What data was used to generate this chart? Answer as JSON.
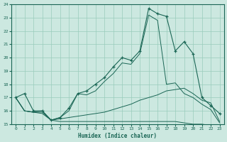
{
  "xlabel": "Humidex (Indice chaleur)",
  "bg_color": "#cce8e0",
  "grid_color": "#99ccbb",
  "line_color": "#1a6655",
  "xlim": [
    -0.5,
    23.5
  ],
  "ylim": [
    15,
    24
  ],
  "yticks": [
    15,
    16,
    17,
    18,
    19,
    20,
    21,
    22,
    23,
    24
  ],
  "xticks": [
    0,
    1,
    2,
    3,
    4,
    5,
    6,
    7,
    8,
    9,
    10,
    11,
    12,
    13,
    14,
    15,
    16,
    17,
    18,
    19,
    20,
    21,
    22,
    23
  ],
  "line1_x": [
    0,
    1,
    2,
    3,
    4,
    5,
    6,
    7,
    8,
    9,
    10,
    11,
    12,
    13,
    14,
    15,
    16,
    17,
    18,
    19,
    20,
    21,
    22,
    23
  ],
  "line1_y": [
    17.0,
    17.3,
    16.0,
    16.0,
    15.3,
    15.5,
    16.2,
    17.3,
    17.5,
    18.0,
    18.5,
    19.3,
    20.0,
    19.8,
    20.5,
    23.7,
    23.3,
    23.1,
    20.5,
    21.2,
    20.3,
    17.0,
    16.4,
    15.8
  ],
  "line2_x": [
    0,
    1,
    2,
    3,
    4,
    5,
    6,
    7,
    8,
    9,
    10,
    11,
    12,
    13,
    14,
    15,
    16,
    17,
    18,
    19,
    20,
    21,
    22,
    23
  ],
  "line2_y": [
    17.0,
    16.0,
    15.9,
    16.0,
    15.3,
    15.5,
    16.0,
    17.3,
    17.2,
    17.5,
    18.2,
    18.8,
    19.6,
    19.5,
    20.3,
    23.2,
    22.8,
    18.0,
    18.1,
    17.3,
    17.0,
    16.5,
    16.1,
    15.1
  ],
  "line3_x": [
    0,
    1,
    2,
    3,
    4,
    5,
    6,
    7,
    8,
    9,
    10,
    11,
    12,
    13,
    14,
    15,
    16,
    17,
    18,
    19,
    20,
    21,
    22,
    23
  ],
  "line3_y": [
    17.0,
    16.0,
    15.9,
    15.9,
    15.3,
    15.4,
    15.5,
    15.6,
    15.7,
    15.8,
    15.9,
    16.1,
    16.3,
    16.5,
    16.8,
    17.0,
    17.2,
    17.5,
    17.6,
    17.7,
    17.3,
    16.8,
    16.6,
    15.2
  ],
  "line4_x": [
    0,
    1,
    2,
    3,
    4,
    5,
    6,
    7,
    8,
    9,
    10,
    11,
    12,
    13,
    14,
    15,
    16,
    17,
    18,
    19,
    20,
    21,
    22,
    23
  ],
  "line4_y": [
    17.0,
    16.0,
    15.9,
    15.8,
    15.3,
    15.2,
    15.2,
    15.2,
    15.2,
    15.2,
    15.2,
    15.2,
    15.2,
    15.2,
    15.2,
    15.2,
    15.2,
    15.2,
    15.2,
    15.1,
    15.0,
    15.0,
    14.9,
    14.9
  ]
}
